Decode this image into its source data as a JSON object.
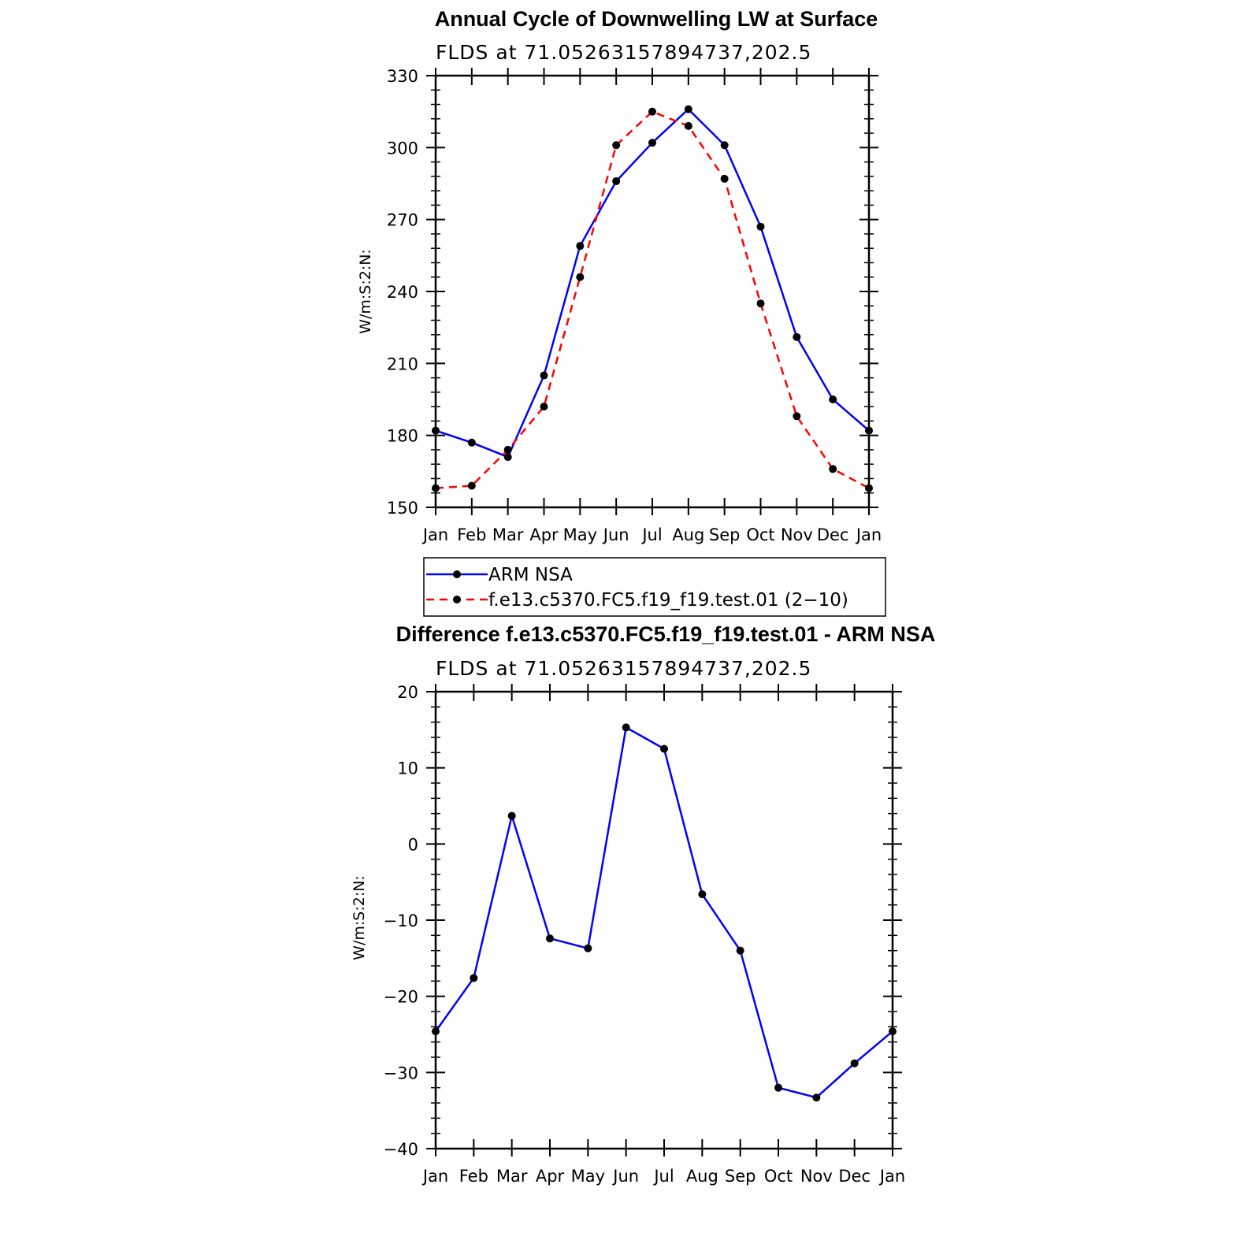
{
  "chart_data": [
    {
      "type": "line",
      "title": "Annual Cycle of Downwelling LW at Surface",
      "subtitle": "FLDS at 71.05263157894737,202.5",
      "ylabel": "W/m:S:2:N:",
      "xlabel": "",
      "categories": [
        "Jan",
        "Feb",
        "Mar",
        "Apr",
        "May",
        "Jun",
        "Jul",
        "Aug",
        "Sep",
        "Oct",
        "Nov",
        "Dec",
        "Jan"
      ],
      "ylim": [
        150,
        330
      ],
      "yticks": [
        "150",
        "180",
        "210",
        "240",
        "270",
        "300",
        "330"
      ],
      "series": [
        {
          "name": "ARM NSA",
          "color": "#0000ff",
          "dash": "solid",
          "values": [
            182,
            177,
            171,
            205,
            259,
            286,
            302,
            316,
            301,
            267,
            221,
            195,
            182
          ]
        },
        {
          "name": "f.e13.c5370.FC5.f19_f19.test.01 (2−10)",
          "color": "#ff0000",
          "dash": "dashed",
          "values": [
            158,
            159,
            174,
            192,
            246,
            301,
            315,
            309,
            287,
            235,
            188,
            166,
            158
          ]
        }
      ],
      "legend": "below"
    },
    {
      "type": "line",
      "title": "Difference f.e13.c5370.FC5.f19_f19.test.01 - ARM NSA",
      "subtitle": "FLDS at 71.05263157894737,202.5",
      "ylabel": "W/m:S:2:N:",
      "xlabel": "",
      "categories": [
        "Jan",
        "Feb",
        "Mar",
        "Apr",
        "May",
        "Jun",
        "Jul",
        "Aug",
        "Sep",
        "Oct",
        "Nov",
        "Dec",
        "Jan"
      ],
      "ylim": [
        -40,
        20
      ],
      "yticks": [
        "−40",
        "−30",
        "−20",
        "−10",
        "0",
        "10",
        "20"
      ],
      "series": [
        {
          "color": "#0000ff",
          "dash": "solid",
          "values": [
            -24.6,
            -17.6,
            3.7,
            -12.4,
            -13.7,
            15.3,
            12.5,
            -6.6,
            -14.0,
            -32.0,
            -33.3,
            -28.8,
            -24.6
          ]
        }
      ]
    }
  ]
}
